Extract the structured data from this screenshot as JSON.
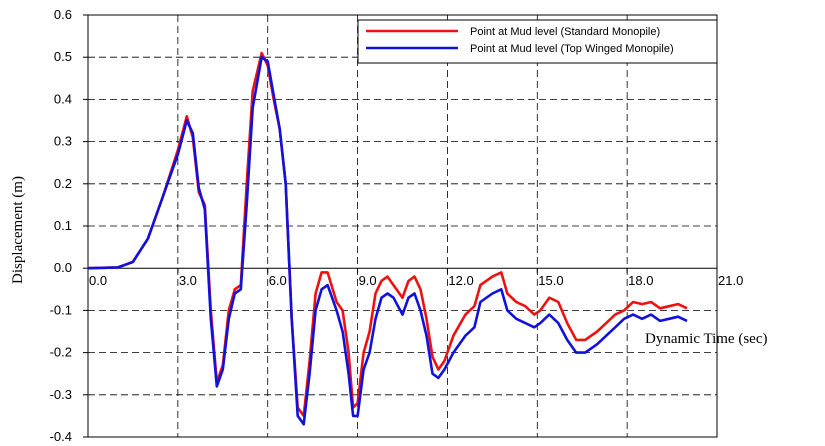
{
  "chart_data": {
    "type": "line",
    "xlabel": "Dynamic Time  (sec)",
    "ylabel": "Displacement (m)",
    "xlim": [
      0,
      21
    ],
    "ylim": [
      -0.4,
      0.6
    ],
    "x_ticks": [
      "0.0",
      "3.0",
      "6.0",
      "9.0",
      "12.0",
      "15.0",
      "18.0",
      "21.0"
    ],
    "y_ticks": [
      "0.6",
      "0.5",
      "0.4",
      "0.3",
      "0.2",
      "0.1",
      "0.0",
      "-0.1",
      "-0.2",
      "-0.3",
      "-0.4"
    ],
    "grid": true,
    "legend_position": "top-right",
    "series": [
      {
        "name": "Point at Mud level (Standard Monopile)",
        "color": "#ee1111",
        "points": [
          [
            0,
            0
          ],
          [
            1,
            0.002
          ],
          [
            1.5,
            0.015
          ],
          [
            2,
            0.07
          ],
          [
            2.5,
            0.17
          ],
          [
            3,
            0.28
          ],
          [
            3.3,
            0.36
          ],
          [
            3.5,
            0.31
          ],
          [
            3.7,
            0.18
          ],
          [
            3.9,
            0.15
          ],
          [
            4.1,
            -0.1
          ],
          [
            4.3,
            -0.27
          ],
          [
            4.5,
            -0.23
          ],
          [
            4.7,
            -0.1
          ],
          [
            4.9,
            -0.05
          ],
          [
            5.1,
            -0.04
          ],
          [
            5.3,
            0.2
          ],
          [
            5.5,
            0.42
          ],
          [
            5.8,
            0.51
          ],
          [
            6.0,
            0.48
          ],
          [
            6.2,
            0.4
          ],
          [
            6.4,
            0.33
          ],
          [
            6.6,
            0.2
          ],
          [
            6.8,
            -0.12
          ],
          [
            7.0,
            -0.33
          ],
          [
            7.2,
            -0.35
          ],
          [
            7.4,
            -0.22
          ],
          [
            7.6,
            -0.06
          ],
          [
            7.8,
            -0.01
          ],
          [
            8.0,
            -0.01
          ],
          [
            8.3,
            -0.08
          ],
          [
            8.5,
            -0.1
          ],
          [
            8.7,
            -0.2
          ],
          [
            8.85,
            -0.33
          ],
          [
            9.0,
            -0.32
          ],
          [
            9.2,
            -0.2
          ],
          [
            9.4,
            -0.15
          ],
          [
            9.6,
            -0.06
          ],
          [
            9.8,
            -0.03
          ],
          [
            10.0,
            -0.02
          ],
          [
            10.2,
            -0.04
          ],
          [
            10.5,
            -0.07
          ],
          [
            10.7,
            -0.03
          ],
          [
            10.9,
            -0.02
          ],
          [
            11.1,
            -0.05
          ],
          [
            11.3,
            -0.12
          ],
          [
            11.5,
            -0.21
          ],
          [
            11.7,
            -0.24
          ],
          [
            11.9,
            -0.22
          ],
          [
            12.2,
            -0.16
          ],
          [
            12.6,
            -0.11
          ],
          [
            12.9,
            -0.09
          ],
          [
            13.1,
            -0.04
          ],
          [
            13.5,
            -0.02
          ],
          [
            13.8,
            -0.01
          ],
          [
            14.0,
            -0.06
          ],
          [
            14.3,
            -0.08
          ],
          [
            14.6,
            -0.09
          ],
          [
            14.9,
            -0.11
          ],
          [
            15.1,
            -0.1
          ],
          [
            15.4,
            -0.07
          ],
          [
            15.7,
            -0.08
          ],
          [
            16.0,
            -0.13
          ],
          [
            16.3,
            -0.17
          ],
          [
            16.6,
            -0.17
          ],
          [
            17.0,
            -0.15
          ],
          [
            17.3,
            -0.13
          ],
          [
            17.6,
            -0.11
          ],
          [
            17.9,
            -0.1
          ],
          [
            18.2,
            -0.08
          ],
          [
            18.5,
            -0.085
          ],
          [
            18.8,
            -0.08
          ],
          [
            19.1,
            -0.095
          ],
          [
            19.4,
            -0.09
          ],
          [
            19.7,
            -0.085
          ],
          [
            20.0,
            -0.095
          ]
        ]
      },
      {
        "name": "Point at Mud level (Top Winged Monopile)",
        "color": "#1111dd",
        "points": [
          [
            0,
            0
          ],
          [
            1,
            0.002
          ],
          [
            1.5,
            0.015
          ],
          [
            2,
            0.07
          ],
          [
            2.5,
            0.17
          ],
          [
            3,
            0.27
          ],
          [
            3.3,
            0.35
          ],
          [
            3.5,
            0.32
          ],
          [
            3.7,
            0.19
          ],
          [
            3.9,
            0.14
          ],
          [
            4.1,
            -0.12
          ],
          [
            4.3,
            -0.28
          ],
          [
            4.5,
            -0.24
          ],
          [
            4.7,
            -0.12
          ],
          [
            4.9,
            -0.06
          ],
          [
            5.1,
            -0.05
          ],
          [
            5.3,
            0.15
          ],
          [
            5.5,
            0.38
          ],
          [
            5.8,
            0.5
          ],
          [
            6.0,
            0.49
          ],
          [
            6.2,
            0.41
          ],
          [
            6.4,
            0.33
          ],
          [
            6.6,
            0.2
          ],
          [
            6.8,
            -0.12
          ],
          [
            7.0,
            -0.35
          ],
          [
            7.2,
            -0.37
          ],
          [
            7.4,
            -0.25
          ],
          [
            7.6,
            -0.1
          ],
          [
            7.8,
            -0.05
          ],
          [
            8.0,
            -0.04
          ],
          [
            8.3,
            -0.1
          ],
          [
            8.5,
            -0.15
          ],
          [
            8.7,
            -0.25
          ],
          [
            8.85,
            -0.35
          ],
          [
            9.0,
            -0.35
          ],
          [
            9.2,
            -0.24
          ],
          [
            9.4,
            -0.2
          ],
          [
            9.6,
            -0.12
          ],
          [
            9.8,
            -0.07
          ],
          [
            10.0,
            -0.06
          ],
          [
            10.2,
            -0.07
          ],
          [
            10.5,
            -0.11
          ],
          [
            10.7,
            -0.07
          ],
          [
            10.9,
            -0.06
          ],
          [
            11.1,
            -0.1
          ],
          [
            11.3,
            -0.16
          ],
          [
            11.5,
            -0.25
          ],
          [
            11.7,
            -0.26
          ],
          [
            11.9,
            -0.24
          ],
          [
            12.2,
            -0.2
          ],
          [
            12.6,
            -0.16
          ],
          [
            12.9,
            -0.14
          ],
          [
            13.1,
            -0.08
          ],
          [
            13.5,
            -0.06
          ],
          [
            13.8,
            -0.05
          ],
          [
            14.0,
            -0.1
          ],
          [
            14.3,
            -0.12
          ],
          [
            14.6,
            -0.13
          ],
          [
            14.9,
            -0.14
          ],
          [
            15.1,
            -0.13
          ],
          [
            15.4,
            -0.11
          ],
          [
            15.7,
            -0.13
          ],
          [
            16.0,
            -0.17
          ],
          [
            16.3,
            -0.2
          ],
          [
            16.6,
            -0.2
          ],
          [
            17.0,
            -0.18
          ],
          [
            17.3,
            -0.16
          ],
          [
            17.6,
            -0.14
          ],
          [
            17.9,
            -0.12
          ],
          [
            18.2,
            -0.11
          ],
          [
            18.5,
            -0.12
          ],
          [
            18.8,
            -0.11
          ],
          [
            19.1,
            -0.125
          ],
          [
            19.4,
            -0.12
          ],
          [
            19.7,
            -0.115
          ],
          [
            20.0,
            -0.125
          ]
        ]
      }
    ]
  }
}
